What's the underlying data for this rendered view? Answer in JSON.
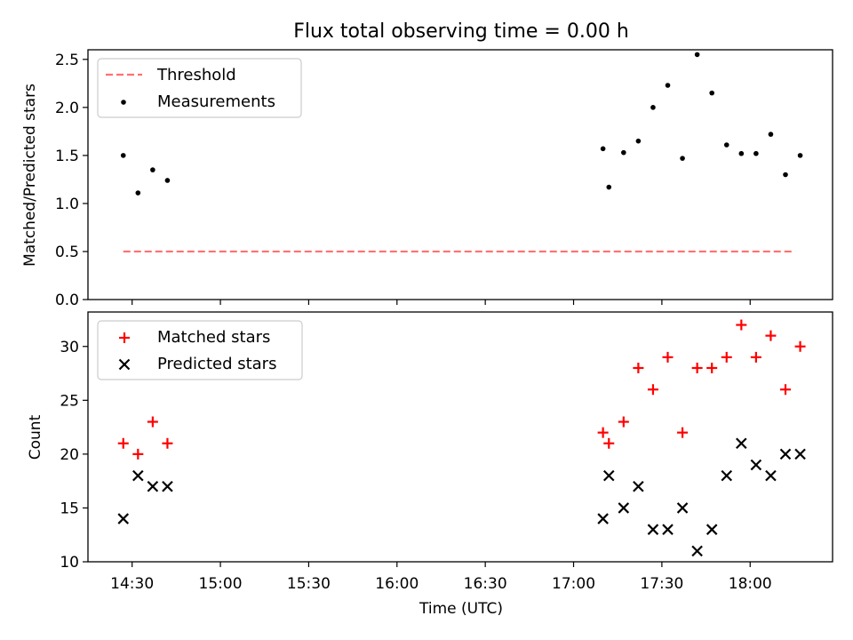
{
  "chart_data": [
    {
      "type": "scatter",
      "title": "Flux total observing time = 0.00 h",
      "ylabel": "Matched/Predicted stars",
      "ylim": [
        0,
        2.6
      ],
      "y_ticks": [
        "0.0",
        "0.5",
        "1.0",
        "1.5",
        "2.0",
        "2.5"
      ],
      "grid": false,
      "legend": "top-left",
      "threshold": {
        "name": "Threshold",
        "value": 0.5,
        "x_range": [
          "14:27",
          "18:15"
        ],
        "color": "#ff7070",
        "style": "dashed"
      },
      "series": [
        {
          "name": "Measurements",
          "color": "#000000",
          "marker": "dot",
          "x": [
            "14:27",
            "14:32",
            "14:37",
            "14:42",
            "17:10",
            "17:12",
            "17:17",
            "17:22",
            "17:27",
            "17:32",
            "17:37",
            "17:42",
            "17:47",
            "17:52",
            "17:57",
            "18:02",
            "18:07",
            "18:12",
            "18:17"
          ],
          "y": [
            1.5,
            1.11,
            1.35,
            1.24,
            1.57,
            1.17,
            1.53,
            1.65,
            2.0,
            2.23,
            1.47,
            2.55,
            2.15,
            1.61,
            1.52,
            1.52,
            1.72,
            1.3,
            1.5
          ]
        }
      ]
    },
    {
      "type": "scatter",
      "xlabel": "Time (UTC)",
      "ylabel": "Count",
      "ylim": [
        10,
        33.2
      ],
      "y_ticks": [
        "10",
        "15",
        "20",
        "25",
        "30"
      ],
      "x_ticks": [
        "14:30",
        "15:00",
        "15:30",
        "16:00",
        "16:30",
        "17:00",
        "17:30",
        "18:00"
      ],
      "x_range": [
        "14:15",
        "18:28"
      ],
      "grid": false,
      "legend": "top-left",
      "series": [
        {
          "name": "Matched stars",
          "color": "#ff0000",
          "marker": "plus",
          "x": [
            "14:27",
            "14:32",
            "14:37",
            "14:42",
            "17:10",
            "17:12",
            "17:17",
            "17:22",
            "17:27",
            "17:32",
            "17:37",
            "17:42",
            "17:47",
            "17:52",
            "17:57",
            "18:02",
            "18:07",
            "18:12",
            "18:17"
          ],
          "y": [
            21,
            20,
            23,
            21,
            22,
            21,
            23,
            28,
            26,
            29,
            22,
            28,
            28,
            29,
            32,
            29,
            31,
            26,
            30
          ]
        },
        {
          "name": "Predicted stars",
          "color": "#000000",
          "marker": "x",
          "x": [
            "14:27",
            "14:32",
            "14:37",
            "14:42",
            "17:10",
            "17:12",
            "17:17",
            "17:22",
            "17:27",
            "17:32",
            "17:37",
            "17:42",
            "17:47",
            "17:52",
            "17:57",
            "18:02",
            "18:07",
            "18:12",
            "18:17"
          ],
          "y": [
            14,
            18,
            17,
            17,
            14,
            18,
            15,
            17,
            13,
            13,
            15,
            11,
            13,
            18,
            21,
            19,
            18,
            20,
            20
          ]
        }
      ]
    }
  ]
}
